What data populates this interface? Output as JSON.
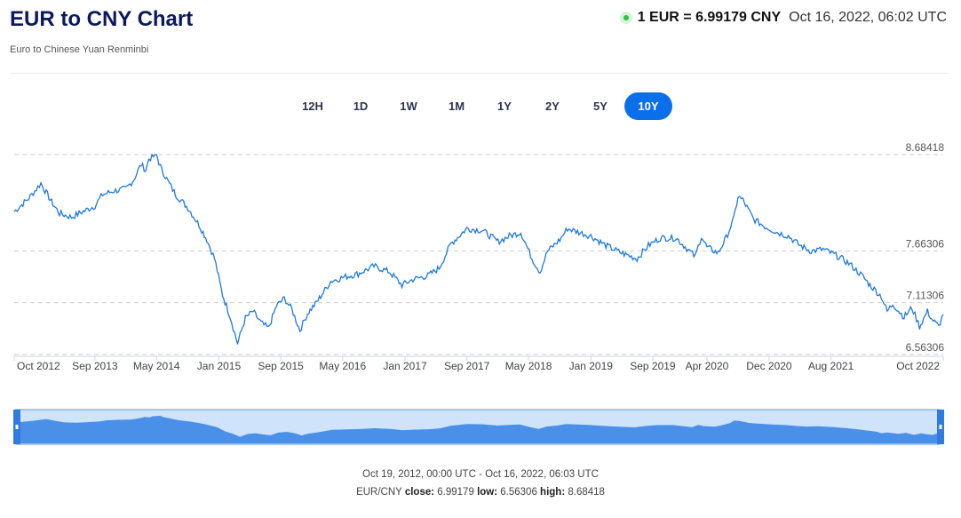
{
  "header": {
    "title": "EUR to CNY Chart",
    "subtitle": "Euro to Chinese Yuan Renminbi",
    "rate": "1 EUR = 6.99179 CNY",
    "timestamp": "Oct 16, 2022, 06:02 UTC"
  },
  "tabs": [
    {
      "label": "12H",
      "active": false
    },
    {
      "label": "1D",
      "active": false
    },
    {
      "label": "1W",
      "active": false
    },
    {
      "label": "1M",
      "active": false
    },
    {
      "label": "1Y",
      "active": false
    },
    {
      "label": "2Y",
      "active": false
    },
    {
      "label": "5Y",
      "active": false
    },
    {
      "label": "10Y",
      "active": true
    }
  ],
  "colors": {
    "line": "#1f78e0",
    "navigator_fill": "#4a90e8",
    "navigator_bg": "#cfe3fb",
    "active_tab": "#0a6fe8",
    "status_dot": "#2fbe4a"
  },
  "chart_data": {
    "type": "line",
    "title": "",
    "xlabel": "",
    "ylabel": "",
    "series": [
      {
        "x": [
          "2012-10-19",
          "2012-12-15",
          "2013-01-20",
          "2013-02-01",
          "2013-03-15",
          "2013-04-15",
          "2013-06-01",
          "2013-07-01",
          "2013-09-01",
          "2013-10-01",
          "2013-11-15",
          "2014-01-01",
          "2014-02-01",
          "2014-03-01",
          "2014-03-20",
          "2014-04-01",
          "2014-05-01",
          "2014-05-15",
          "2014-06-15",
          "2014-07-15",
          "2014-09-01",
          "2014-10-15",
          "2014-11-15",
          "2014-12-15",
          "2015-01-15",
          "2015-02-15",
          "2015-03-15",
          "2015-04-15",
          "2015-05-15",
          "2015-06-15",
          "2015-07-15",
          "2015-08-15",
          "2015-09-15",
          "2015-10-15",
          "2015-11-15",
          "2015-12-15",
          "2016-01-15",
          "2016-02-15",
          "2016-03-15",
          "2016-05-01",
          "2016-07-01",
          "2016-09-01",
          "2016-11-01",
          "2016-12-20",
          "2017-02-01",
          "2017-04-01",
          "2017-05-15",
          "2017-07-01",
          "2017-08-01",
          "2017-09-01",
          "2017-11-01",
          "2018-01-01",
          "2018-02-15",
          "2018-04-01",
          "2018-05-15",
          "2018-06-15",
          "2018-07-15",
          "2018-09-01",
          "2018-10-01",
          "2018-11-15",
          "2019-01-01",
          "2019-03-01",
          "2019-05-01",
          "2019-07-01",
          "2019-08-15",
          "2019-10-01",
          "2019-12-01",
          "2020-01-01",
          "2020-02-15",
          "2020-03-10",
          "2020-04-01",
          "2020-05-15",
          "2020-06-15",
          "2020-07-15",
          "2020-08-01",
          "2020-08-20",
          "2020-10-01",
          "2020-11-15",
          "2021-01-01",
          "2021-02-15",
          "2021-04-01",
          "2021-05-15",
          "2021-07-01",
          "2021-09-01",
          "2021-10-15",
          "2021-12-01",
          "2022-01-01",
          "2022-02-15",
          "2022-03-10",
          "2022-04-01",
          "2022-05-15",
          "2022-06-15",
          "2022-07-15",
          "2022-08-15",
          "2022-09-01",
          "2022-09-28",
          "2022-10-16"
        ],
        "values": [
          8.08,
          8.22,
          8.34,
          8.38,
          8.18,
          8.06,
          8.02,
          8.06,
          8.14,
          8.26,
          8.3,
          8.32,
          8.42,
          8.58,
          8.52,
          8.64,
          8.68,
          8.56,
          8.4,
          8.26,
          8.12,
          7.94,
          7.78,
          7.58,
          7.2,
          6.96,
          6.68,
          6.95,
          7.02,
          6.9,
          6.84,
          7.08,
          7.16,
          7.04,
          6.82,
          7.0,
          7.1,
          7.22,
          7.34,
          7.38,
          7.42,
          7.5,
          7.44,
          7.3,
          7.36,
          7.4,
          7.48,
          7.74,
          7.82,
          7.9,
          7.88,
          7.76,
          7.82,
          7.86,
          7.58,
          7.44,
          7.66,
          7.78,
          7.9,
          7.86,
          7.82,
          7.72,
          7.64,
          7.58,
          7.72,
          7.8,
          7.8,
          7.72,
          7.6,
          7.82,
          7.7,
          7.64,
          7.8,
          8.0,
          8.24,
          8.2,
          8.0,
          7.92,
          7.86,
          7.82,
          7.72,
          7.66,
          7.68,
          7.6,
          7.52,
          7.4,
          7.3,
          7.18,
          7.02,
          7.1,
          6.96,
          7.06,
          6.86,
          7.02,
          6.94,
          6.86,
          6.99
        ]
      }
    ],
    "ylim": [
      6.56306,
      8.68418
    ],
    "y_ticks": [
      "8.68418",
      "7.66306",
      "7.11306",
      "6.56306"
    ],
    "x_ticks": [
      "Oct 2012",
      "Sep 2013",
      "May 2014",
      "Jan 2015",
      "Sep 2015",
      "May 2016",
      "Jan 2017",
      "Sep 2017",
      "May 2018",
      "Jan 2019",
      "Sep 2019",
      "Apr 2020",
      "Dec 2020",
      "Aug 2021",
      "Oct 2022"
    ],
    "x_tick_dates": [
      "2012-10-19",
      "2013-09-01",
      "2014-05-01",
      "2015-01-01",
      "2015-09-01",
      "2016-05-01",
      "2017-01-01",
      "2017-09-01",
      "2018-05-01",
      "2019-01-01",
      "2019-09-01",
      "2020-04-01",
      "2020-12-01",
      "2021-08-01",
      "2022-10-16"
    ],
    "grid": "horizontal dashed",
    "legend": "none"
  },
  "footer": {
    "range": "Oct 19, 2012, 00:00 UTC - Oct 16, 2022, 06:03 UTC",
    "pair": "EUR/CNY",
    "close_label": "close:",
    "close_value": "6.99179",
    "low_label": "low:",
    "low_value": "6.56306",
    "high_label": "high:",
    "high_value": "8.68418"
  }
}
